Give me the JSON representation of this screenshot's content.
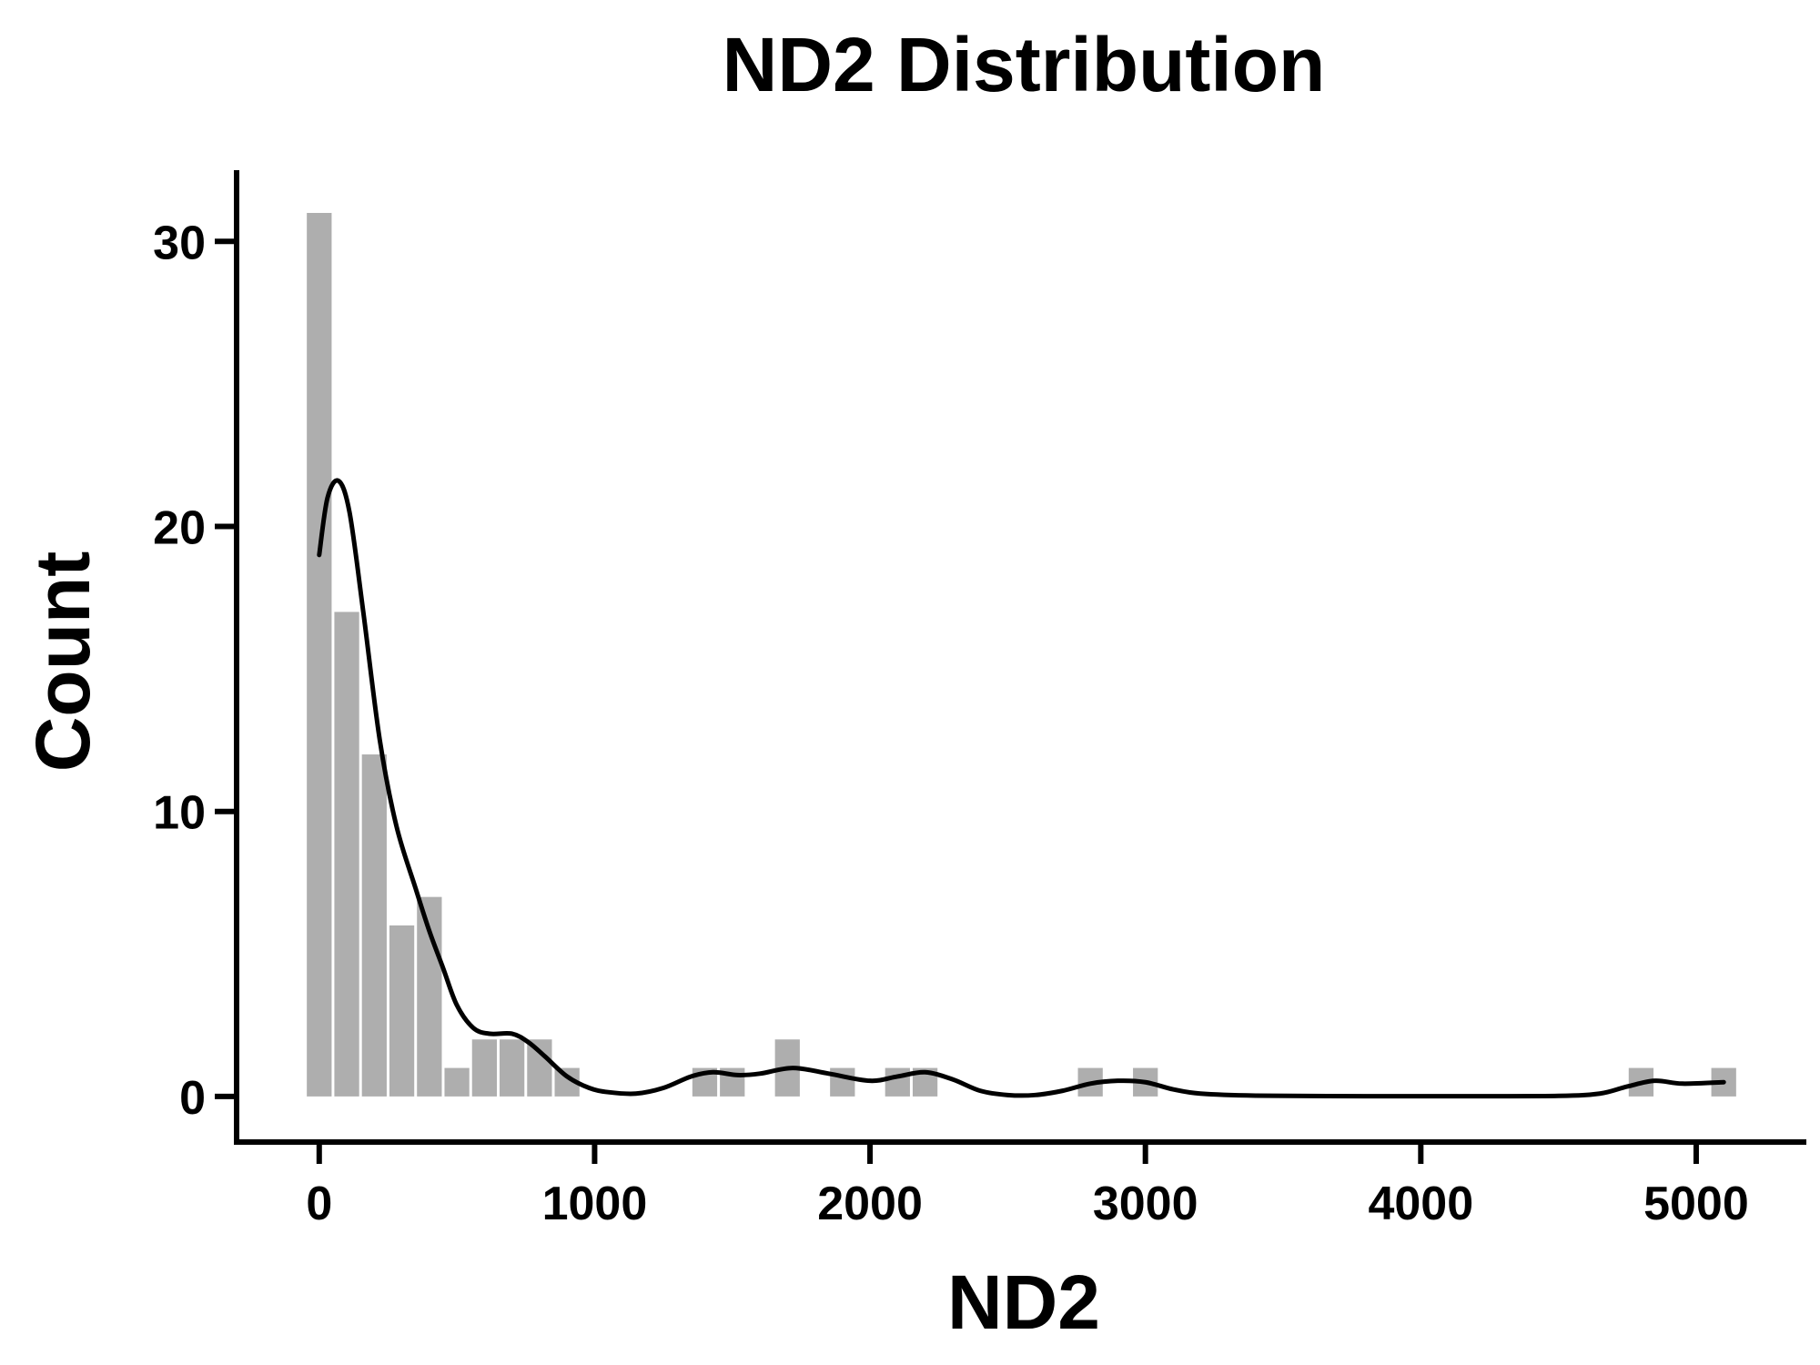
{
  "chart_data": {
    "type": "bar",
    "title": "ND2 Distribution",
    "xlabel": "ND2",
    "ylabel": "Count",
    "xlim": [
      -300,
      5400
    ],
    "ylim": [
      -1.6,
      32.5
    ],
    "x_ticks": [
      0,
      1000,
      2000,
      3000,
      4000,
      5000
    ],
    "y_ticks": [
      0,
      10,
      20,
      30
    ],
    "grid": false,
    "legend": "none",
    "bar_color": "#aeaeae",
    "line_color": "#000000",
    "bin_width": 100,
    "bins": [
      {
        "x": 0,
        "count": 31
      },
      {
        "x": 100,
        "count": 17
      },
      {
        "x": 200,
        "count": 12
      },
      {
        "x": 300,
        "count": 6
      },
      {
        "x": 400,
        "count": 7
      },
      {
        "x": 500,
        "count": 1
      },
      {
        "x": 600,
        "count": 2
      },
      {
        "x": 700,
        "count": 2
      },
      {
        "x": 800,
        "count": 2
      },
      {
        "x": 900,
        "count": 1
      },
      {
        "x": 1400,
        "count": 1
      },
      {
        "x": 1500,
        "count": 1
      },
      {
        "x": 1700,
        "count": 2
      },
      {
        "x": 1900,
        "count": 1
      },
      {
        "x": 2100,
        "count": 1
      },
      {
        "x": 2200,
        "count": 1
      },
      {
        "x": 2800,
        "count": 1
      },
      {
        "x": 3000,
        "count": 1
      },
      {
        "x": 4800,
        "count": 1
      },
      {
        "x": 5100,
        "count": 1
      }
    ],
    "density_curve": {
      "x": [
        0,
        30,
        70,
        110,
        160,
        220,
        280,
        350,
        400,
        450,
        500,
        560,
        620,
        700,
        760,
        820,
        900,
        980,
        1050,
        1150,
        1250,
        1350,
        1430,
        1520,
        1600,
        1720,
        1850,
        2000,
        2100,
        2200,
        2300,
        2400,
        2500,
        2600,
        2700,
        2800,
        2900,
        3000,
        3100,
        3200,
        3400,
        3800,
        4200,
        4500,
        4650,
        4750,
        4850,
        4950,
        5100
      ],
      "y": [
        19.0,
        21.0,
        21.6,
        20.5,
        17.0,
        12.5,
        9.5,
        7.3,
        5.8,
        4.5,
        3.2,
        2.4,
        2.2,
        2.2,
        1.9,
        1.4,
        0.7,
        0.3,
        0.15,
        0.1,
        0.3,
        0.7,
        0.85,
        0.75,
        0.8,
        1.0,
        0.8,
        0.55,
        0.7,
        0.85,
        0.6,
        0.2,
        0.05,
        0.05,
        0.2,
        0.45,
        0.55,
        0.5,
        0.25,
        0.1,
        0.03,
        0.01,
        0.01,
        0.02,
        0.1,
        0.35,
        0.55,
        0.45,
        0.5
      ]
    }
  }
}
